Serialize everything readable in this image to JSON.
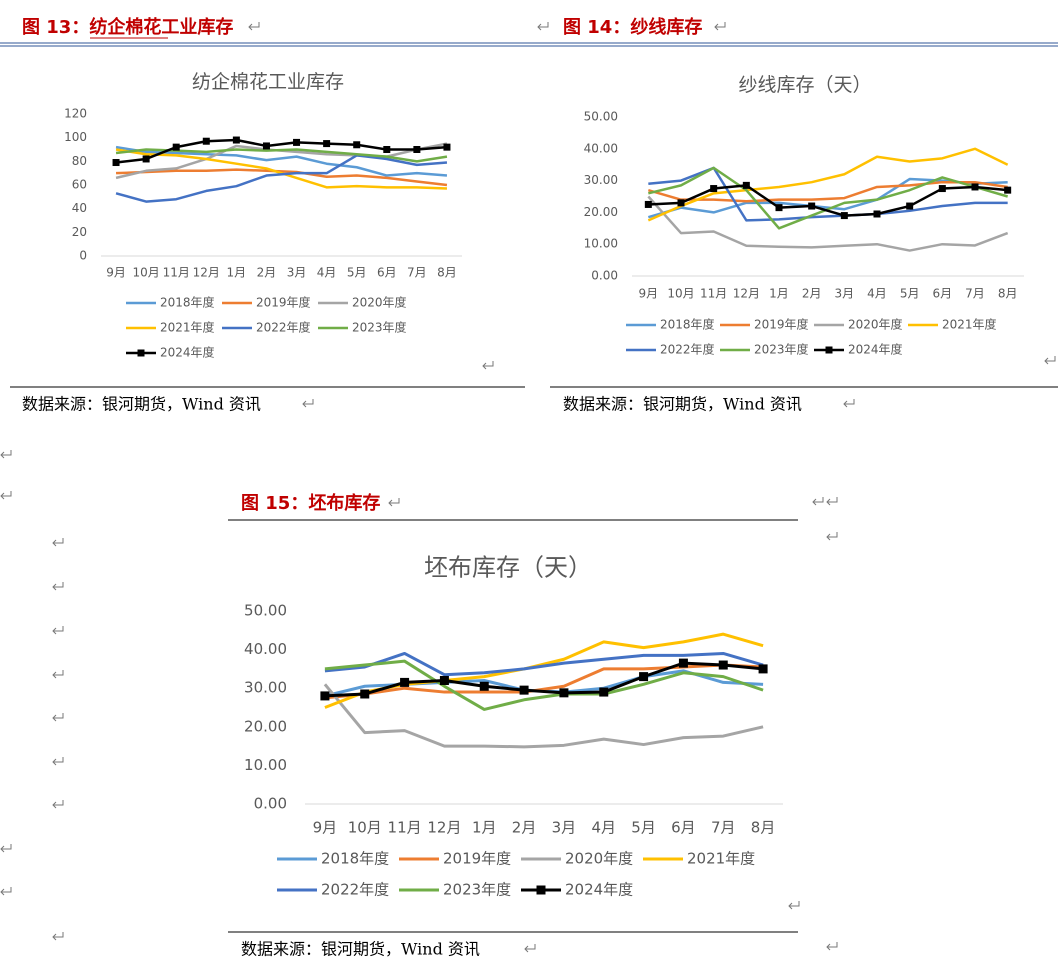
{
  "captions": [
    "图 13：纺企棉花工业库存",
    "图 14：纱线库存",
    "图 15：坯布库存"
  ],
  "sources": [
    "数据来源：银河期货，Wind 资讯",
    "数据来源：银河期货，Wind 资讯",
    "数据来源：银河期货，Wind 资讯"
  ],
  "chart_data": [
    {
      "type": "line",
      "title": "纺企棉花工业库存",
      "grid": false,
      "categories": [
        "9月",
        "10月",
        "11月",
        "12月",
        "1月",
        "2月",
        "3月",
        "4月",
        "5月",
        "6月",
        "7月",
        "8月"
      ],
      "ylim": [
        0,
        120
      ],
      "yticks": [
        0,
        20,
        40,
        60,
        80,
        100,
        120
      ],
      "series": [
        {
          "name": "2018年度",
          "color": "#5b9bd5",
          "values": [
            92,
            88,
            87,
            86,
            85,
            81,
            84,
            78,
            75,
            68,
            70,
            68
          ]
        },
        {
          "name": "2019年度",
          "color": "#ed7d31",
          "values": [
            70,
            71,
            72,
            72,
            73,
            72,
            71,
            67,
            68,
            66,
            63,
            60
          ]
        },
        {
          "name": "2020年度",
          "color": "#a5a5a5",
          "values": [
            66,
            72,
            74,
            82,
            93,
            90,
            88,
            86,
            85,
            84,
            90,
            95
          ]
        },
        {
          "name": "2021年度",
          "color": "#ffc000",
          "values": [
            90,
            86,
            85,
            82,
            78,
            74,
            66,
            58,
            59,
            58,
            58,
            57
          ]
        },
        {
          "name": "2022年度",
          "color": "#4472c4",
          "values": [
            53,
            46,
            48,
            55,
            59,
            68,
            70,
            70,
            85,
            82,
            77,
            79
          ]
        },
        {
          "name": "2023年度",
          "color": "#70ad47",
          "values": [
            87,
            90,
            89,
            88,
            90,
            89,
            90,
            88,
            86,
            84,
            80,
            84
          ]
        },
        {
          "name": "2024年度",
          "color": "#000000",
          "marker": "square",
          "values": [
            79,
            82,
            92,
            97,
            98,
            93,
            96,
            95,
            94,
            90,
            90,
            92
          ]
        }
      ]
    },
    {
      "type": "line",
      "title": "纱线库存（天）",
      "grid": false,
      "categories": [
        "9月",
        "10月",
        "11月",
        "12月",
        "1月",
        "2月",
        "3月",
        "4月",
        "5月",
        "6月",
        "7月",
        "8月"
      ],
      "ylim": [
        0,
        50
      ],
      "yticks": [
        {
          "value": 0,
          "label": "0.00"
        },
        {
          "value": 10,
          "label": "10.00"
        },
        {
          "value": 20,
          "label": "20.00"
        },
        {
          "value": 30,
          "label": "30.00"
        },
        {
          "value": 40,
          "label": "40.00"
        },
        {
          "value": 50,
          "label": "50.00"
        }
      ],
      "series": [
        {
          "name": "2018年度",
          "color": "#5b9bd5",
          "values": [
            18.5,
            21.5,
            20,
            23,
            23,
            22,
            21,
            24,
            30.5,
            30,
            29,
            29.5
          ]
        },
        {
          "name": "2019年度",
          "color": "#ed7d31",
          "values": [
            27,
            24,
            24,
            23.5,
            24,
            24,
            24.5,
            28,
            28.5,
            29.5,
            29.5,
            28
          ]
        },
        {
          "name": "2020年度",
          "color": "#a5a5a5",
          "values": [
            25,
            13.5,
            14,
            9.5,
            9.2,
            9,
            9.5,
            10,
            8,
            10,
            9.6,
            13.5
          ]
        },
        {
          "name": "2021年度",
          "color": "#ffc000",
          "values": [
            17.5,
            22,
            26,
            27,
            28,
            29.5,
            32,
            37.5,
            36,
            37,
            40,
            35
          ]
        },
        {
          "name": "2022年度",
          "color": "#4472c4",
          "values": [
            29,
            30,
            34,
            17.5,
            17.8,
            18.5,
            19,
            19.5,
            20.5,
            22,
            23,
            23
          ]
        },
        {
          "name": "2023年度",
          "color": "#70ad47",
          "values": [
            26,
            28.5,
            34,
            27,
            15,
            19,
            23,
            24,
            27,
            31,
            28,
            25
          ]
        },
        {
          "name": "2024年度",
          "color": "#000000",
          "marker": "square",
          "values": [
            22.5,
            23,
            27.5,
            28.5,
            21.5,
            22,
            19,
            19.5,
            22,
            27.5,
            28,
            27
          ]
        }
      ]
    },
    {
      "type": "line",
      "title": "坯布库存（天）",
      "grid": false,
      "categories": [
        "9月",
        "10月",
        "11月",
        "12月",
        "1月",
        "2月",
        "3月",
        "4月",
        "5月",
        "6月",
        "7月",
        "8月"
      ],
      "ylim": [
        0,
        50
      ],
      "yticks": [
        {
          "value": 0,
          "label": "0.00"
        },
        {
          "value": 10,
          "label": "10.00"
        },
        {
          "value": 20,
          "label": "20.00"
        },
        {
          "value": 30,
          "label": "30.00"
        },
        {
          "value": 40,
          "label": "40.00"
        },
        {
          "value": 50,
          "label": "50.00"
        }
      ],
      "series": [
        {
          "name": "2018年度",
          "color": "#5b9bd5",
          "values": [
            28,
            30.5,
            31,
            31.5,
            32,
            29.5,
            29,
            30,
            33,
            34.5,
            31.5,
            31
          ]
        },
        {
          "name": "2019年度",
          "color": "#ed7d31",
          "values": [
            27.5,
            28.5,
            30,
            29,
            29,
            29,
            30.5,
            35,
            35,
            35.5,
            36,
            35.5
          ]
        },
        {
          "name": "2020年度",
          "color": "#a5a5a5",
          "values": [
            31,
            18.5,
            19,
            15,
            15,
            14.8,
            15.2,
            16.8,
            15.4,
            17.2,
            17.6,
            20
          ]
        },
        {
          "name": "2021年度",
          "color": "#ffc000",
          "values": [
            25,
            29,
            31,
            32,
            33,
            35,
            37.5,
            42,
            40.5,
            42,
            44,
            41
          ]
        },
        {
          "name": "2022年度",
          "color": "#4472c4",
          "values": [
            34.5,
            35.5,
            39,
            33.5,
            34,
            35,
            36.5,
            37.5,
            38.5,
            38.5,
            39,
            36
          ]
        },
        {
          "name": "2023年度",
          "color": "#70ad47",
          "values": [
            35,
            36,
            37,
            30.5,
            24.5,
            27,
            28.5,
            28.5,
            31,
            34,
            33,
            29.5
          ]
        },
        {
          "name": "2024年度",
          "color": "#000000",
          "marker": "square",
          "values": [
            28,
            28.5,
            31.5,
            32,
            30.5,
            29.5,
            28.8,
            29,
            33,
            36.5,
            36,
            35
          ]
        }
      ]
    }
  ]
}
